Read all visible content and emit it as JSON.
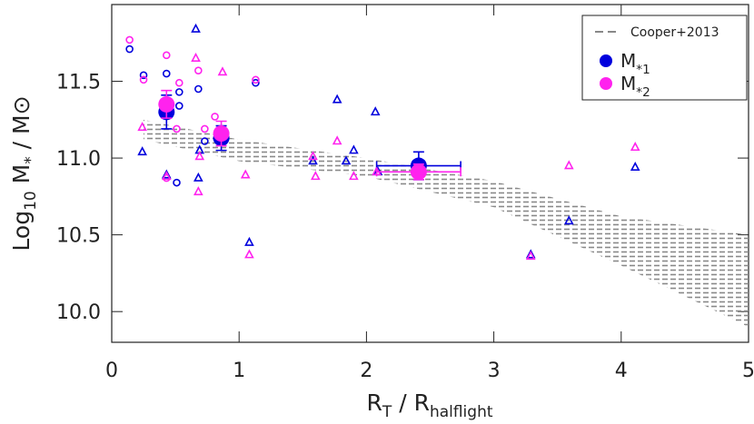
{
  "chart_data": {
    "type": "scatter",
    "xlabel": [
      {
        "text": "R"
      },
      {
        "text": "T",
        "sub": true
      },
      {
        "text": " / R"
      },
      {
        "text": "halflight",
        "sub": true
      }
    ],
    "ylabel": [
      {
        "text": "Log"
      },
      {
        "text": "10",
        "sub": true
      },
      {
        "text": " M"
      },
      {
        "text": "*",
        "sub": true
      },
      {
        "text": " / M⊙"
      }
    ],
    "xlim": [
      0,
      5
    ],
    "ylim": [
      9.8,
      12.0
    ],
    "xticks": [
      0,
      1,
      2,
      3,
      4,
      5
    ],
    "yticks": [
      {
        "value": 10,
        "label": "10.0"
      },
      10.5,
      {
        "value": 11,
        "label": "11.0"
      },
      11.5
    ],
    "band": {
      "name": "Cooper+2013",
      "color": "#888888",
      "x": [
        0.25,
        1,
        2,
        3,
        4,
        5
      ],
      "upper": [
        11.25,
        11.12,
        11.0,
        10.85,
        10.62,
        10.5
      ],
      "lower": [
        11.12,
        10.98,
        10.88,
        10.68,
        10.3,
        9.9
      ]
    },
    "series": [
      {
        "color": "#0000dd",
        "marker": "circle",
        "x": [
          0.14,
          0.25,
          0.43,
          0.53,
          0.68,
          0.53,
          0.73,
          0.51,
          1.13
        ],
        "values": [
          11.71,
          11.54,
          11.55,
          11.43,
          11.45,
          11.34,
          11.11,
          10.84,
          11.49
        ]
      },
      {
        "color": "#ff22ee",
        "marker": "circle",
        "x": [
          0.14,
          0.25,
          0.43,
          0.53,
          0.68,
          0.51,
          0.73,
          0.81,
          1.13,
          0.43
        ],
        "values": [
          11.77,
          11.51,
          11.67,
          11.49,
          11.57,
          11.19,
          11.19,
          11.27,
          11.51,
          10.87
        ]
      },
      {
        "color": "#0000dd",
        "marker": "triangle",
        "x": [
          0.24,
          0.43,
          0.66,
          0.68,
          0.69,
          1.08,
          1.77,
          2.07,
          1.58,
          1.9,
          1.84,
          3.59,
          3.29,
          4.11,
          2.09
        ],
        "values": [
          11.04,
          10.89,
          11.84,
          10.87,
          11.05,
          10.45,
          11.38,
          11.3,
          10.98,
          11.05,
          10.98,
          10.59,
          10.37,
          10.94,
          10.91
        ]
      },
      {
        "color": "#ff22ee",
        "marker": "triangle",
        "x": [
          0.24,
          0.43,
          0.66,
          0.68,
          0.69,
          0.87,
          1.05,
          1.08,
          1.77,
          1.6,
          1.58,
          1.9,
          2.08,
          3.29,
          3.59,
          4.11
        ],
        "values": [
          11.2,
          10.88,
          11.65,
          10.78,
          11.01,
          11.56,
          10.89,
          10.37,
          11.11,
          10.88,
          11.01,
          10.88,
          10.91,
          10.36,
          10.95,
          11.07
        ]
      },
      {
        "name": [
          {
            "text": "M"
          },
          {
            "text": "*1",
            "sub": true
          }
        ],
        "color": "#0000dd",
        "marker": "dot",
        "x": [
          0.43,
          0.86,
          2.41
        ],
        "xerr": [
          0,
          0,
          0.33
        ],
        "values": [
          11.3,
          11.13,
          10.95
        ],
        "yerr": [
          0.11,
          0.08,
          0.09
        ]
      },
      {
        "name": [
          {
            "text": "M"
          },
          {
            "text": "*2",
            "sub": true
          }
        ],
        "color": "#ff22ee",
        "marker": "dot",
        "x": [
          0.43,
          0.86,
          2.41
        ],
        "xerr": [
          0,
          0,
          0.33
        ],
        "values": [
          11.35,
          11.16,
          10.91
        ],
        "yerr": [
          0.09,
          0.08,
          0.05
        ]
      }
    ]
  }
}
